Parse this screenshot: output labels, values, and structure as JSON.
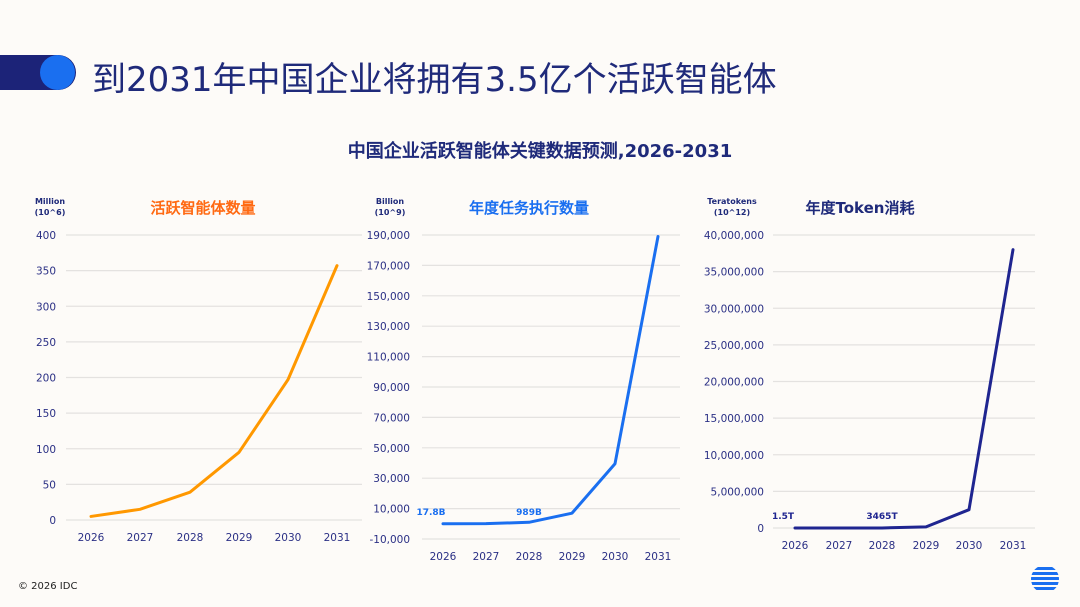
{
  "header": {
    "title": "到2031年中国企业将拥有3.5亿个活跃智能体"
  },
  "subtitle": "中国企业活跃智能体关键数据预测,2026-2031",
  "footer": {
    "copyright": "© 2026 IDC"
  },
  "chart_data": [
    {
      "type": "line",
      "title": "活跃智能体数量",
      "title_color": "#ff6a13",
      "line_color": "#ff9800",
      "unit_label": [
        "Million",
        "(10^6)"
      ],
      "categories": [
        "2026",
        "2027",
        "2028",
        "2029",
        "2030",
        "2031"
      ],
      "values": [
        5,
        15,
        39,
        95,
        197,
        357
      ],
      "ylim": [
        0,
        400
      ],
      "yticks": [
        "400",
        "350",
        "300",
        "250",
        "200",
        "150",
        "100",
        "50",
        "0"
      ],
      "grid": true,
      "annotations": []
    },
    {
      "type": "line",
      "title": "年度任务执行数量",
      "title_color": "#1a6ff0",
      "line_color": "#1a6ff0",
      "unit_label": [
        "Billion",
        "(10^9)"
      ],
      "categories": [
        "2026",
        "2027",
        "2028",
        "2029",
        "2030",
        "2031"
      ],
      "values": [
        17.8,
        100,
        989,
        7000,
        39500,
        189000
      ],
      "ylim": [
        -10000,
        190000
      ],
      "yticks": [
        "190,000",
        "170,000",
        "150,000",
        "130,000",
        "110,000",
        "90,000",
        "70,000",
        "50,000",
        "30,000",
        "10,000",
        "-10,000"
      ],
      "grid": true,
      "annotations": [
        {
          "text": "17.8B",
          "category": "2026"
        },
        {
          "text": "989B",
          "category": "2028"
        }
      ]
    },
    {
      "type": "line",
      "title": "年度Token消耗",
      "title_color": "#1f2a7a",
      "line_color": "#1f2590",
      "unit_label": [
        "Teratokens",
        "(10^12)"
      ],
      "categories": [
        "2026",
        "2027",
        "2028",
        "2029",
        "2030",
        "2031"
      ],
      "values": [
        1.5,
        50,
        3465,
        150000,
        2500000,
        38000000
      ],
      "ylim": [
        0,
        40000000
      ],
      "yticks": [
        "40,000,000",
        "35,000,000",
        "30,000,000",
        "25,000,000",
        "20,000,000",
        "15,000,000",
        "10,000,000",
        "5,000,000",
        "0"
      ],
      "grid": true,
      "annotations": [
        {
          "text": "1.5T",
          "category": "2026"
        },
        {
          "text": "3465T",
          "category": "2028"
        }
      ]
    }
  ]
}
